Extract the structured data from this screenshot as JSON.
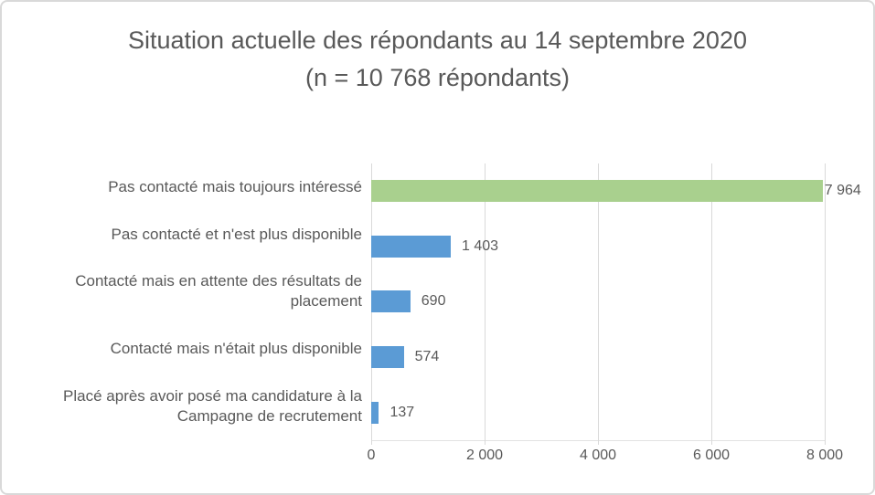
{
  "colors": {
    "highlight_green": "#a9d08e",
    "bar_blue": "#5b9bd5",
    "grid": "#d9d9d9",
    "text": "#595959",
    "border": "#d9d9d9",
    "background": "#ffffff"
  },
  "chart_data": {
    "type": "bar",
    "orientation": "horizontal",
    "title": "Situation actuelle des répondants au 14 septembre 2020 (n = 10 768 répondants)",
    "categories": [
      "Pas contacté mais toujours intéressé",
      "Pas contacté et n'est plus disponible",
      "Contacté mais en attente des résultats de placement",
      "Contacté mais n'était plus disponible",
      "Placé après avoir posé ma candidature à la Campagne de recrutement"
    ],
    "values": [
      7964,
      1403,
      690,
      574,
      137
    ],
    "value_labels": [
      "7 964",
      "1 403",
      "690",
      "574",
      "137"
    ],
    "bar_colors": [
      "#a9d08e",
      "#5b9bd5",
      "#5b9bd5",
      "#5b9bd5",
      "#5b9bd5"
    ],
    "total_respondents": "10 768",
    "xlim": [
      0,
      8000
    ],
    "xticks": [
      0,
      2000,
      4000,
      6000,
      8000
    ],
    "xtick_labels": [
      "0",
      "2 000",
      "4 000",
      "6 000",
      "8 000"
    ],
    "grid": true,
    "legend": false,
    "value_label_position": "outside-end"
  }
}
